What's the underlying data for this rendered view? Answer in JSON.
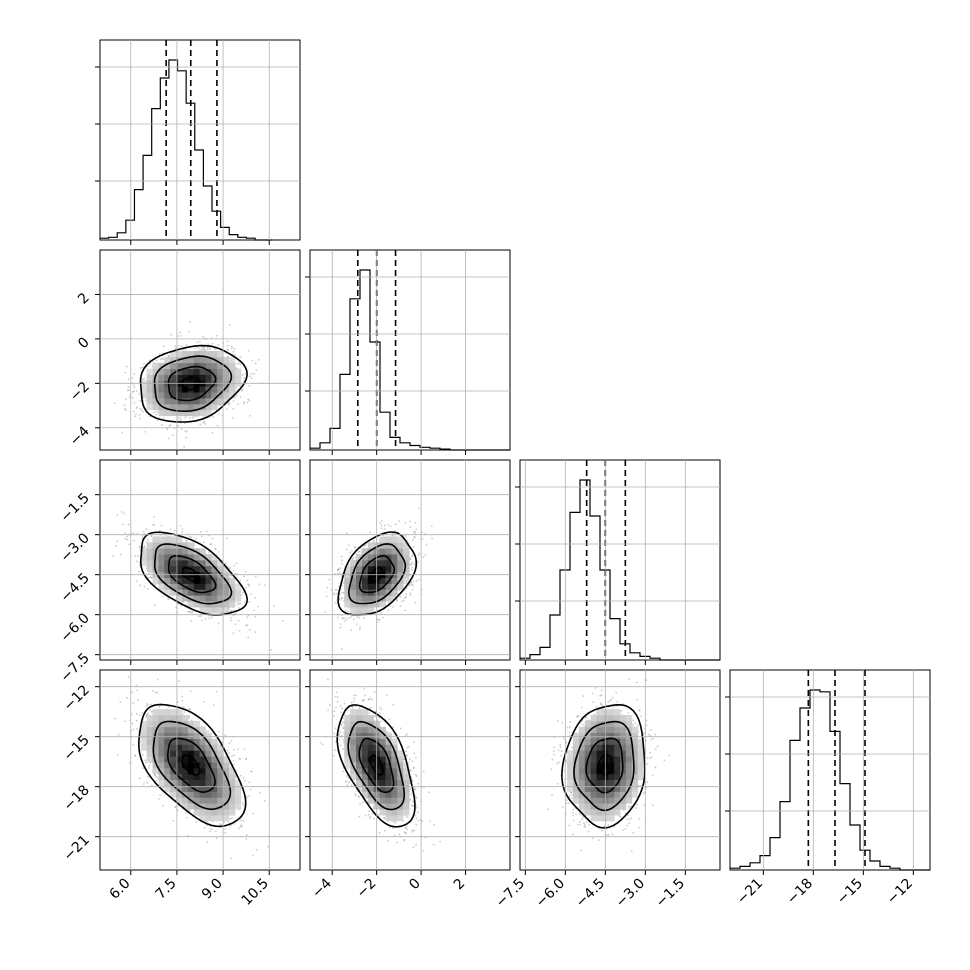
{
  "chart_data": {
    "type": "corner",
    "title": "",
    "dimensions": 4,
    "parameters": [
      {
        "index": 0,
        "median": 7.95,
        "q16": 7.15,
        "q84": 8.8,
        "std": 0.8,
        "range": [
          5.0,
          11.5
        ],
        "ticks": [
          6.0,
          7.5,
          9.0,
          10.5
        ],
        "tick_labels": [
          "6.0",
          "7.5",
          "9.0",
          "10.5"
        ]
      },
      {
        "index": 1,
        "median": -2.0,
        "q16": -2.85,
        "q84": -1.15,
        "std": 0.8,
        "range": [
          -5.0,
          4.0
        ],
        "ticks": [
          -4,
          -2,
          0,
          2
        ],
        "tick_labels": [
          "−4",
          "−2",
          "0",
          "2"
        ]
      },
      {
        "index": 2,
        "median": -4.5,
        "q16": -5.2,
        "q84": -3.75,
        "std": 0.72,
        "range": [
          -7.7,
          -0.2
        ],
        "ticks": [
          -7.5,
          -6.0,
          -4.5,
          -3.0,
          -1.5
        ],
        "tick_labels": [
          "−7.5",
          "−6.0",
          "−4.5",
          "−3.0",
          "−1.5"
        ]
      },
      {
        "index": 3,
        "median": -16.7,
        "q16": -18.3,
        "q84": -14.9,
        "std": 1.7,
        "range": [
          -23.0,
          -11.0
        ],
        "ticks": [
          -21,
          -18,
          -15,
          -12
        ],
        "tick_labels": [
          "−21",
          "−18",
          "−15",
          "−12"
        ]
      }
    ],
    "correlations": [
      {
        "pair": [
          0,
          1
        ],
        "rho": 0.2
      },
      {
        "pair": [
          0,
          2
        ],
        "rho": -0.55
      },
      {
        "pair": [
          1,
          2
        ],
        "rho": 0.4
      },
      {
        "pair": [
          0,
          3
        ],
        "rho": -0.55
      },
      {
        "pair": [
          1,
          3
        ],
        "rho": -0.55
      },
      {
        "pair": [
          2,
          3
        ],
        "rho": 0.1
      }
    ],
    "histograms": [
      {
        "param": 0,
        "bin_edges_range": [
          5.0,
          10.6
        ],
        "bins": 20,
        "counts": [
          0.01,
          0.015,
          0.04,
          0.11,
          0.28,
          0.47,
          0.73,
          0.9,
          1.0,
          0.94,
          0.76,
          0.5,
          0.3,
          0.16,
          0.07,
          0.03,
          0.015,
          0.01,
          0.0,
          0.0
        ]
      },
      {
        "param": 1,
        "bin_edges_range": [
          -5.0,
          4.0
        ],
        "bins": 20,
        "counts": [
          0.01,
          0.04,
          0.12,
          0.42,
          0.84,
          1.0,
          0.6,
          0.21,
          0.07,
          0.04,
          0.025,
          0.015,
          0.01,
          0.005,
          0.0,
          0.0,
          0.0,
          0.0,
          0.0,
          0.0
        ]
      },
      {
        "param": 2,
        "bin_edges_range": [
          -7.7,
          -0.2
        ],
        "bins": 20,
        "counts": [
          0.01,
          0.03,
          0.07,
          0.25,
          0.5,
          0.82,
          1.0,
          0.8,
          0.5,
          0.23,
          0.09,
          0.04,
          0.02,
          0.01,
          0.0,
          0.0,
          0.0,
          0.0,
          0.0,
          0.0
        ]
      },
      {
        "param": 3,
        "bin_edges_range": [
          -23.0,
          -11.0
        ],
        "bins": 20,
        "counts": [
          0.01,
          0.02,
          0.04,
          0.08,
          0.18,
          0.38,
          0.72,
          0.9,
          1.0,
          0.99,
          0.77,
          0.48,
          0.25,
          0.11,
          0.05,
          0.02,
          0.01,
          0.0,
          0.0,
          0.0
        ]
      }
    ],
    "contour_levels": [
      0.118,
      0.393,
      0.675,
      0.865
    ],
    "grid": true,
    "xlabel": "",
    "ylabel": ""
  }
}
